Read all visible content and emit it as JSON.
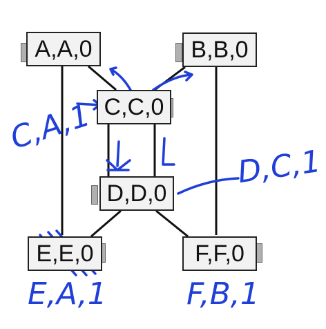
{
  "nodes": {
    "A": {
      "label": "A,A,0"
    },
    "B": {
      "label": "B,B,0"
    },
    "C": {
      "label": "C,C,0"
    },
    "D": {
      "label": "D,D,0"
    },
    "E": {
      "label": "E,E,0"
    },
    "F": {
      "label": "F,F,0"
    }
  },
  "annotations": {
    "c_msg": "C,A,1",
    "d_msg": "D,C,1",
    "e_msg": "E,A,1",
    "f_msg": "F,B,1"
  },
  "colors": {
    "ink": "#1f3fd8",
    "node_fill": "#f2f2f2",
    "link": "#111111",
    "tab": "#b0b0b0"
  }
}
